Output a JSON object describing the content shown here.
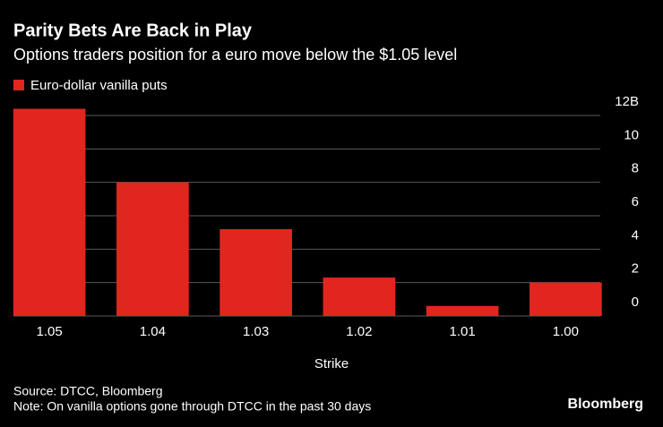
{
  "chart_data": {
    "type": "bar",
    "title": "Parity Bets Are Back in Play",
    "subtitle": "Options traders position for a euro move below the $1.05 level",
    "categories": [
      "1.05",
      "1.04",
      "1.03",
      "1.02",
      "1.01",
      "1.00"
    ],
    "series": [
      {
        "name": "Euro-dollar vanilla puts",
        "color": "#e0261f",
        "values": [
          12.4,
          8.0,
          5.2,
          2.3,
          0.6,
          2.0
        ]
      }
    ],
    "xlabel": "Strike",
    "ylim": [
      0,
      12
    ],
    "yticks": [
      0,
      2,
      4,
      6,
      8,
      10,
      {
        "value": 12,
        "label": "12B"
      }
    ],
    "grid": true,
    "source": "Source: DTCC, Bloomberg",
    "note": "Note: On vanilla options gone through DTCC in the past 30 days",
    "brand": "Bloomberg"
  }
}
